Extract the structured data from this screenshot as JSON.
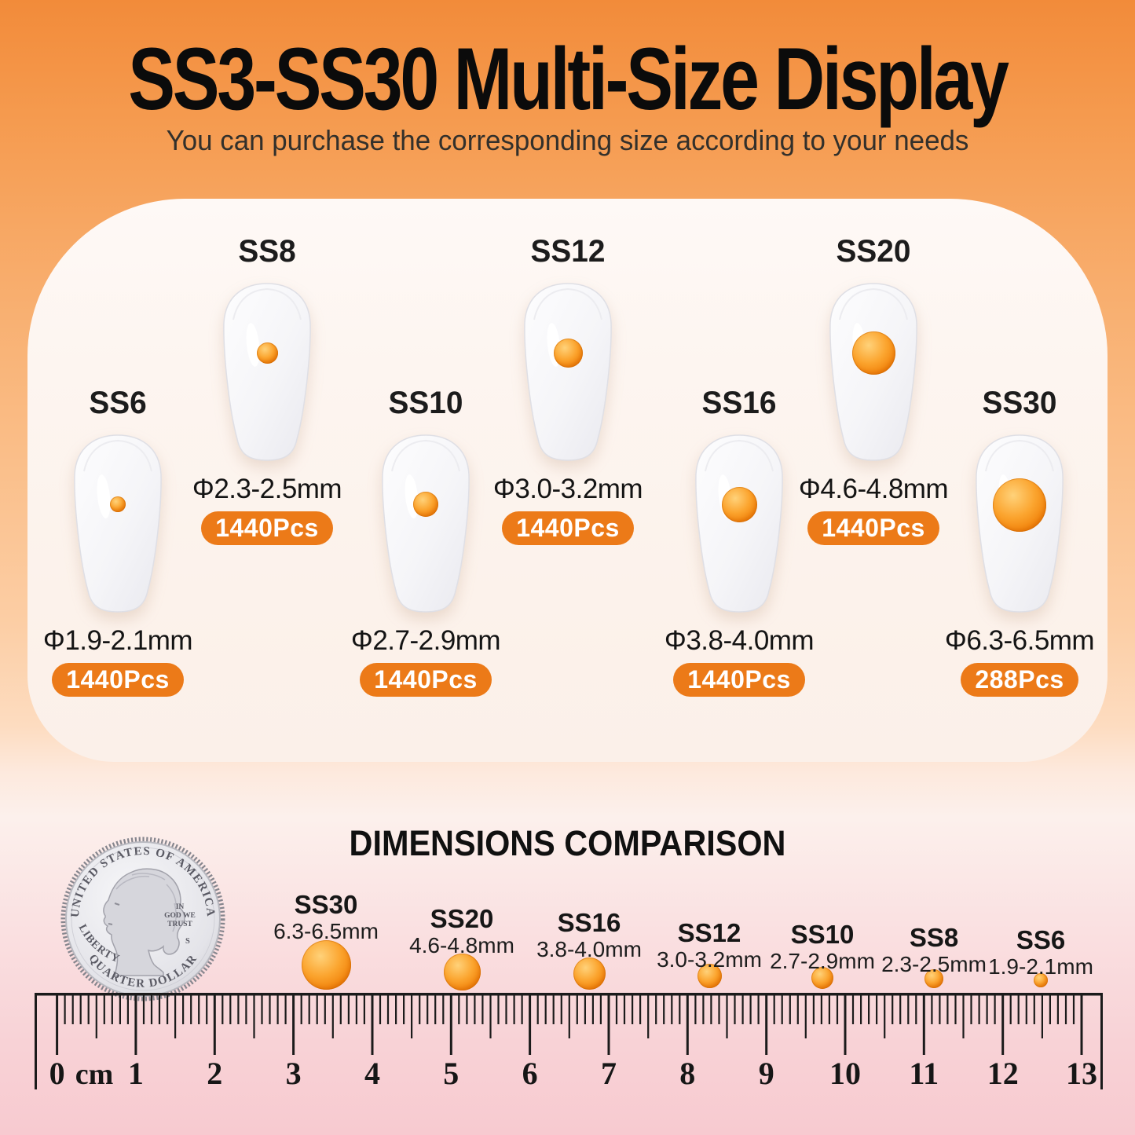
{
  "header": {
    "title": "SS3-SS30 Multi-Size Display",
    "subtitle": "You can purchase the corresponding size according to your needs"
  },
  "nails": [
    {
      "label": "SS6",
      "diameter": "Φ1.9-2.1mm",
      "count": "1440Pcs"
    },
    {
      "label": "SS8",
      "diameter": "Φ2.3-2.5mm",
      "count": "1440Pcs"
    },
    {
      "label": "SS10",
      "diameter": "Φ2.7-2.9mm",
      "count": "1440Pcs"
    },
    {
      "label": "SS12",
      "diameter": "Φ3.0-3.2mm",
      "count": "1440Pcs"
    },
    {
      "label": "SS16",
      "diameter": "Φ3.8-4.0mm",
      "count": "1440Pcs"
    },
    {
      "label": "SS20",
      "diameter": "Φ4.6-4.8mm",
      "count": "1440Pcs"
    },
    {
      "label": "SS30",
      "diameter": "Φ6.3-6.5mm",
      "count": "288Pcs"
    }
  ],
  "comparison": {
    "title": "DIMENSIONS COMPARISON",
    "items": [
      {
        "name": "SS30",
        "size": "6.3-6.5mm"
      },
      {
        "name": "SS20",
        "size": "4.6-4.8mm"
      },
      {
        "name": "SS16",
        "size": "3.8-4.0mm"
      },
      {
        "name": "SS12",
        "size": "3.0-3.2mm"
      },
      {
        "name": "SS10",
        "size": "2.7-2.9mm"
      },
      {
        "name": "SS8",
        "size": "2.3-2.5mm"
      },
      {
        "name": "SS6",
        "size": "1.9-2.1mm"
      }
    ]
  },
  "coin": {
    "top_text": "UNITED STATES OF AMERICA",
    "bottom_text": "QUARTER DOLLAR",
    "left_text": "LIBERTY",
    "motto": [
      "IN",
      "GOD WE",
      "TRUST"
    ],
    "mint_mark": "S"
  },
  "ruler": {
    "unit": "cm",
    "numbers": [
      "0",
      "1",
      "2",
      "3",
      "4",
      "5",
      "6",
      "7",
      "8",
      "9",
      "10",
      "11",
      "12",
      "13"
    ]
  },
  "colors": {
    "accent_orange": "#EC7A18",
    "gem_orange": "#F08008",
    "title_black": "#0B0B0B",
    "frame_orange_top": "#F28B3A",
    "frame_pink_bottom": "#F7CAD0",
    "card_background": "#FDF5F0"
  }
}
